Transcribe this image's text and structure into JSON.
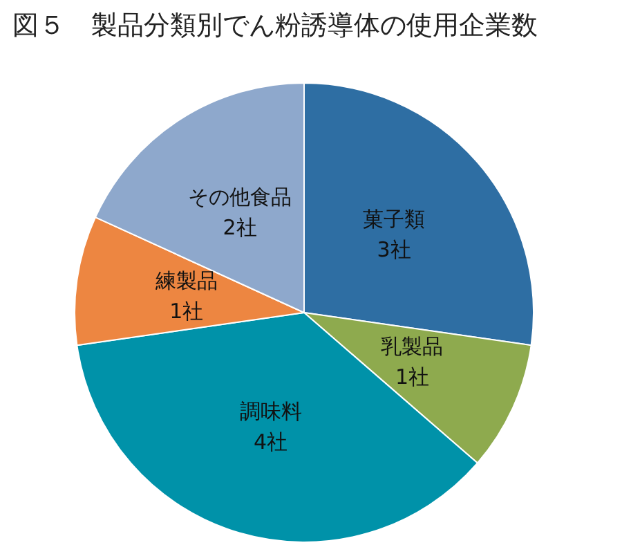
{
  "chart_data": {
    "type": "pie",
    "title": "図５　製品分類別でん粉誘導体の使用企業数",
    "categories": [
      "菓子類",
      "乳製品",
      "調味料",
      "練製品",
      "その他食品"
    ],
    "values": [
      3,
      1,
      4,
      1,
      2
    ],
    "value_labels": [
      "3社",
      "1社",
      "4社",
      "1社",
      "2社"
    ],
    "colors": [
      "#2e6ea3",
      "#8eaa4e",
      "#0092a9",
      "#ed8641",
      "#8ea8cc"
    ],
    "legend": false
  }
}
